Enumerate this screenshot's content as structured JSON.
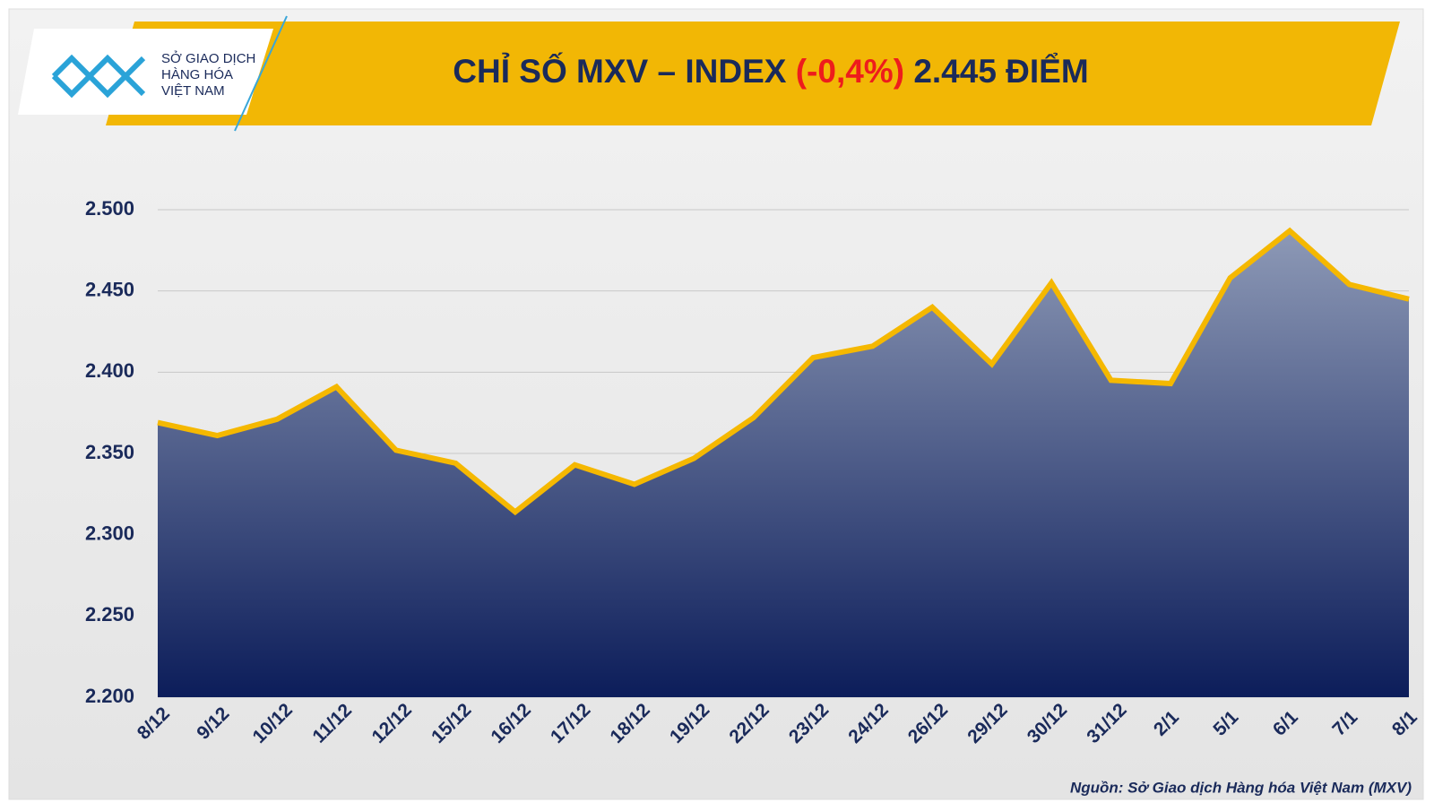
{
  "logo": {
    "lines": [
      "SỞ GIAO DỊCH",
      "HÀNG HÓA",
      "VIỆT NAM"
    ]
  },
  "chart_data": {
    "type": "area",
    "title": {
      "prefix": "CHỈ SỐ MXV – INDEX",
      "change": "(-0,4%)",
      "suffix": "2.445 ĐIỂM",
      "change_color": "#ee1c1c"
    },
    "source": "Nguồn: Sở Giao dịch Hàng hóa Việt Nam (MXV)",
    "categories": [
      "8/12",
      "9/12",
      "10/12",
      "11/12",
      "12/12",
      "15/12",
      "16/12",
      "17/12",
      "18/12",
      "19/12",
      "22/12",
      "23/12",
      "24/12",
      "26/12",
      "29/12",
      "30/12",
      "31/12",
      "2/1",
      "5/1",
      "6/1",
      "7/1",
      "8/1"
    ],
    "values": [
      2369,
      2361,
      2371,
      2391,
      2352,
      2344,
      2314,
      2343,
      2331,
      2347,
      2372,
      2409,
      2416,
      2440,
      2405,
      2455,
      2395,
      2393,
      2458,
      2487,
      2454,
      2445
    ],
    "color": "#f5b800",
    "fill_top": "#8d99b6",
    "fill_bottom": "#0c1d5a",
    "ylim": [
      2200,
      2500
    ],
    "yticks": [
      {
        "value": 2200,
        "label": "2.200"
      },
      {
        "value": 2250,
        "label": "2.250"
      },
      {
        "value": 2300,
        "label": "2.300"
      },
      {
        "value": 2350,
        "label": "2.350"
      },
      {
        "value": 2400,
        "label": "2.400"
      },
      {
        "value": 2450,
        "label": "2.450"
      },
      {
        "value": 2500,
        "label": "2.500"
      }
    ],
    "grid": true
  }
}
